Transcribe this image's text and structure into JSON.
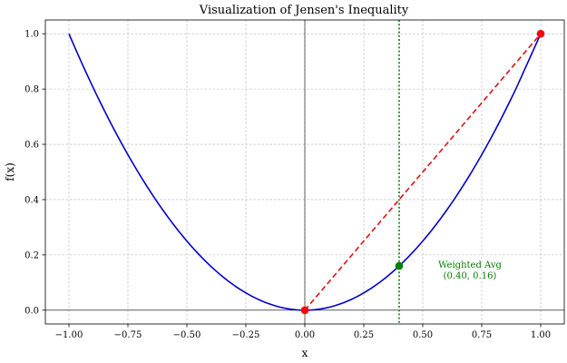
{
  "chart_data": {
    "type": "line",
    "title": "Visualization of Jensen's Inequality",
    "xlabel": "x",
    "ylabel": "f(x)",
    "xlim": [
      -1.1,
      1.1
    ],
    "ylim": [
      -0.05,
      1.05
    ],
    "grid": true,
    "xticks": [
      -1.0,
      -0.75,
      -0.5,
      -0.25,
      0.0,
      0.25,
      0.5,
      0.75,
      1.0
    ],
    "xtick_labels": [
      "−1.00",
      "−0.75",
      "−0.50",
      "−0.25",
      "0.00",
      "0.25",
      "0.50",
      "0.75",
      "1.00"
    ],
    "yticks": [
      0.0,
      0.2,
      0.4,
      0.6,
      0.8,
      1.0
    ],
    "ytick_labels": [
      "0.0",
      "0.2",
      "0.4",
      "0.6",
      "0.8",
      "1.0"
    ],
    "curve": {
      "x": [
        -1.0,
        -0.9,
        -0.8,
        -0.7,
        -0.6,
        -0.5,
        -0.4,
        -0.3,
        -0.2,
        -0.1,
        0.0,
        0.1,
        0.2,
        0.3,
        0.4,
        0.5,
        0.6,
        0.7,
        0.8,
        0.9,
        1.0
      ],
      "y": [
        1.0,
        0.81,
        0.64,
        0.49,
        0.36,
        0.25,
        0.16,
        0.09,
        0.04,
        0.01,
        0.0,
        0.01,
        0.04,
        0.09,
        0.16,
        0.25,
        0.36,
        0.49,
        0.64,
        0.81,
        1.0
      ],
      "color": "#0000cc"
    },
    "chord": {
      "x": [
        0.0,
        1.0
      ],
      "y": [
        0.0,
        1.0
      ],
      "color": "#dd1111",
      "style": "dashed"
    },
    "endpoints": {
      "x": [
        0.0,
        1.0
      ],
      "y": [
        0.0,
        1.0
      ],
      "color": "#ff0000"
    },
    "vline": {
      "x": 0.4,
      "color": "#008000",
      "style": "dotted"
    },
    "weighted_point": {
      "x": 0.4,
      "y": 0.16,
      "color": "#008000"
    },
    "annotation": {
      "line1": "Weighted Avg",
      "line2": "(0.40, 0.16)",
      "color": "#008000",
      "x": 0.7,
      "y": 0.13
    }
  }
}
